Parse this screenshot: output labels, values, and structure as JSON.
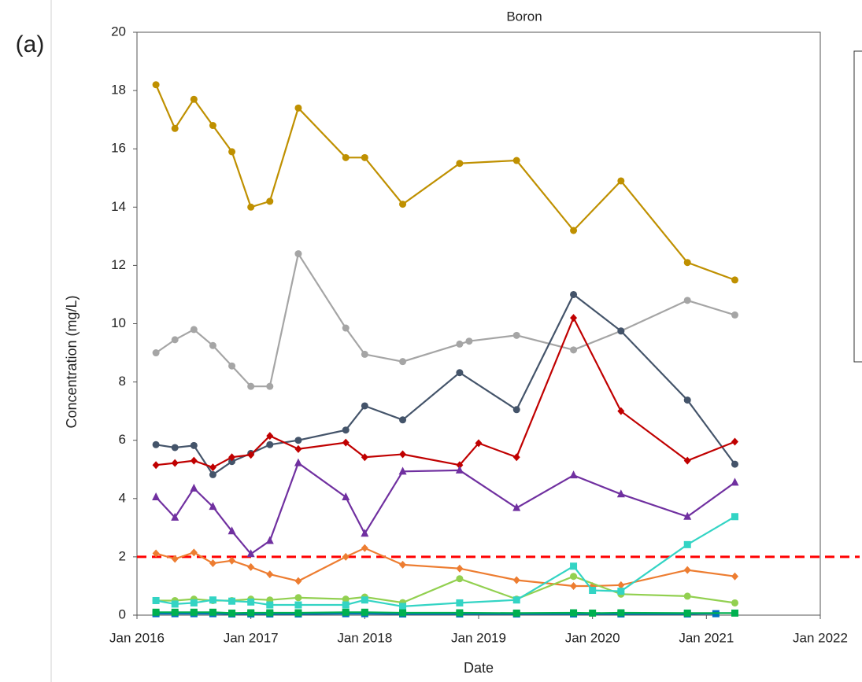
{
  "panel_label": "(a)",
  "chart_data": {
    "type": "line",
    "title": "Boron",
    "xlabel": "Date",
    "ylabel": "Concentration (mg/L)",
    "xlim": [
      "2016-01",
      "2022-01"
    ],
    "xticks": [
      {
        "value": "2016-01",
        "label": "Jan 2016"
      },
      {
        "value": "2017-01",
        "label": "Jan 2017"
      },
      {
        "value": "2018-01",
        "label": "Jan 2018"
      },
      {
        "value": "2019-01",
        "label": "Jan 2019"
      },
      {
        "value": "2020-01",
        "label": "Jan 2020"
      },
      {
        "value": "2021-01",
        "label": "Jan 2021"
      },
      {
        "value": "2022-01",
        "label": "Jan 2022"
      }
    ],
    "ylim": [
      0,
      20
    ],
    "yticks": [
      0,
      2,
      4,
      6,
      8,
      10,
      12,
      14,
      16,
      18,
      20
    ],
    "hline": {
      "value": 2,
      "color": "#ff0000"
    },
    "series": [
      {
        "color": "#bf9000",
        "marker": "circle",
        "x": [
          "2016-03",
          "2016-05",
          "2016-07",
          "2016-09",
          "2016-11",
          "2017-01",
          "2017-03",
          "2017-06",
          "2017-11",
          "2018-01",
          "2018-05",
          "2018-11",
          "2019-05",
          "2019-11",
          "2020-04",
          "2020-11",
          "2021-04"
        ],
        "values": [
          18.2,
          16.7,
          17.7,
          16.8,
          15.9,
          14.0,
          14.2,
          17.4,
          15.7,
          15.7,
          14.1,
          15.5,
          15.6,
          13.2,
          14.9,
          12.1,
          11.5
        ]
      },
      {
        "color": "#a5a5a5",
        "marker": "circle",
        "x": [
          "2016-03",
          "2016-05",
          "2016-07",
          "2016-09",
          "2016-11",
          "2017-01",
          "2017-03",
          "2017-06",
          "2017-11",
          "2018-01",
          "2018-05",
          "2018-11",
          "2018-12",
          "2019-05",
          "2019-11",
          "2020-04",
          "2020-11",
          "2021-04"
        ],
        "values": [
          9.0,
          9.45,
          9.8,
          9.25,
          8.55,
          7.85,
          7.85,
          12.4,
          9.85,
          8.95,
          8.7,
          9.3,
          9.4,
          9.6,
          9.1,
          9.75,
          10.8,
          10.3
        ]
      },
      {
        "color": "#44546a",
        "marker": "circle",
        "x": [
          "2016-03",
          "2016-05",
          "2016-07",
          "2016-09",
          "2016-11",
          "2017-01",
          "2017-03",
          "2017-06",
          "2017-11",
          "2018-01",
          "2018-05",
          "2018-11",
          "2019-05",
          "2019-11",
          "2020-04",
          "2020-11",
          "2021-04"
        ],
        "values": [
          5.85,
          5.75,
          5.82,
          4.82,
          5.27,
          5.55,
          5.85,
          6.0,
          6.35,
          7.18,
          6.7,
          8.32,
          7.05,
          11.0,
          9.75,
          7.38,
          5.18
        ]
      },
      {
        "color": "#c00000",
        "marker": "diamond",
        "x": [
          "2016-03",
          "2016-05",
          "2016-07",
          "2016-09",
          "2016-11",
          "2017-01",
          "2017-03",
          "2017-06",
          "2017-11",
          "2018-01",
          "2018-05",
          "2018-11",
          "2019-01",
          "2019-05",
          "2019-11",
          "2020-04",
          "2020-11",
          "2021-04"
        ],
        "values": [
          5.15,
          5.22,
          5.3,
          5.07,
          5.42,
          5.5,
          6.15,
          5.7,
          5.92,
          5.42,
          5.52,
          5.15,
          5.9,
          5.42,
          10.2,
          7.0,
          5.3,
          5.95
        ]
      },
      {
        "color": "#7030a0",
        "marker": "triangle",
        "x": [
          "2016-03",
          "2016-05",
          "2016-07",
          "2016-09",
          "2016-11",
          "2017-01",
          "2017-03",
          "2017-06",
          "2017-11",
          "2018-01",
          "2018-05",
          "2018-11",
          "2019-05",
          "2019-11",
          "2020-04",
          "2020-11",
          "2021-04"
        ],
        "values": [
          4.05,
          3.35,
          4.35,
          3.72,
          2.88,
          2.1,
          2.55,
          5.22,
          4.05,
          2.8,
          4.93,
          4.97,
          3.68,
          4.8,
          4.15,
          3.38,
          4.55
        ]
      },
      {
        "color": "#ed7d31",
        "marker": "diamond",
        "x": [
          "2016-03",
          "2016-05",
          "2016-07",
          "2016-09",
          "2016-11",
          "2017-01",
          "2017-03",
          "2017-06",
          "2017-11",
          "2018-01",
          "2018-05",
          "2018-11",
          "2019-05",
          "2019-11",
          "2020-01",
          "2020-04",
          "2020-11",
          "2021-04"
        ],
        "values": [
          2.12,
          1.93,
          2.15,
          1.78,
          1.87,
          1.65,
          1.4,
          1.17,
          2.0,
          2.3,
          1.73,
          1.6,
          1.2,
          1.0,
          1.0,
          1.03,
          1.55,
          1.33
        ]
      },
      {
        "color": "#92d050",
        "marker": "circle",
        "x": [
          "2016-03",
          "2016-05",
          "2016-07",
          "2016-09",
          "2016-11",
          "2017-01",
          "2017-03",
          "2017-06",
          "2017-11",
          "2018-01",
          "2018-05",
          "2018-11",
          "2019-05",
          "2019-11",
          "2020-04",
          "2020-11",
          "2021-04"
        ],
        "values": [
          0.5,
          0.5,
          0.55,
          0.5,
          0.5,
          0.55,
          0.52,
          0.6,
          0.55,
          0.62,
          0.43,
          1.25,
          0.55,
          1.33,
          0.72,
          0.65,
          0.42
        ]
      },
      {
        "color": "#33d4c4",
        "marker": "square",
        "x": [
          "2016-03",
          "2016-05",
          "2016-07",
          "2016-09",
          "2016-11",
          "2017-01",
          "2017-03",
          "2017-06",
          "2017-11",
          "2018-01",
          "2018-05",
          "2018-11",
          "2019-05",
          "2019-11",
          "2020-01",
          "2020-04",
          "2020-11",
          "2021-04"
        ],
        "values": [
          0.5,
          0.38,
          0.42,
          0.52,
          0.48,
          0.45,
          0.35,
          0.35,
          0.35,
          0.52,
          0.3,
          0.42,
          0.52,
          1.68,
          0.85,
          0.82,
          2.42,
          3.38
        ]
      },
      {
        "color": "#0070c0",
        "marker": "square",
        "x": [
          "2016-03",
          "2016-05",
          "2016-07",
          "2016-09",
          "2016-11",
          "2017-01",
          "2017-03",
          "2017-06",
          "2017-11",
          "2018-01",
          "2018-05",
          "2018-11",
          "2019-05",
          "2019-11",
          "2020-04",
          "2020-11",
          "2021-02"
        ],
        "values": [
          0.05,
          0.05,
          0.05,
          0.05,
          0.04,
          0.04,
          0.04,
          0.04,
          0.05,
          0.05,
          0.04,
          0.04,
          0.04,
          0.04,
          0.04,
          0.04,
          0.05
        ]
      },
      {
        "color": "#00b050",
        "marker": "square",
        "x": [
          "2016-03",
          "2016-05",
          "2016-07",
          "2016-09",
          "2016-11",
          "2017-01",
          "2017-03",
          "2017-06",
          "2017-11",
          "2018-01",
          "2018-05",
          "2018-11",
          "2019-05",
          "2019-11",
          "2020-01",
          "2020-04",
          "2020-11",
          "2021-04"
        ],
        "values": [
          0.1,
          0.1,
          0.1,
          0.1,
          0.07,
          0.08,
          0.08,
          0.08,
          0.1,
          0.1,
          0.08,
          0.08,
          0.07,
          0.08,
          0.07,
          0.08,
          0.07,
          0.07
        ]
      }
    ]
  }
}
